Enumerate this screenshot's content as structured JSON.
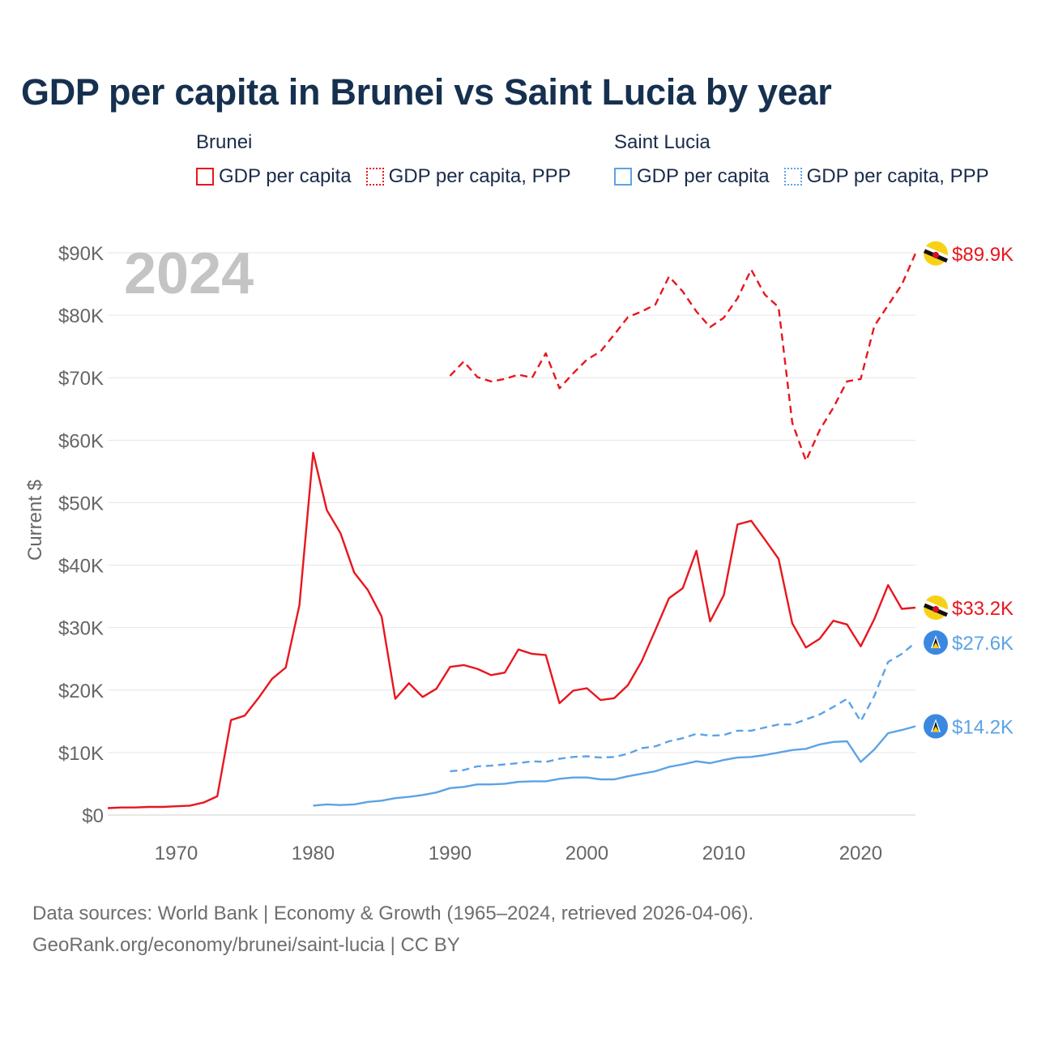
{
  "title": "GDP per capita in Brunei vs Saint Lucia by year",
  "year_watermark": "2024",
  "footer": {
    "line1": "Data sources: World Bank | Economy & Growth (1965–2024, retrieved 2026-04-06).",
    "line2": "GeoRank.org/economy/brunei/saint-lucia | CC BY"
  },
  "legend": {
    "groups": [
      {
        "name": "Brunei",
        "items": [
          "GDP per capita",
          "GDP per capita, PPP"
        ]
      },
      {
        "name": "Saint Lucia",
        "items": [
          "GDP per capita",
          "GDP per capita, PPP"
        ]
      }
    ]
  },
  "colors": {
    "brunei": "#e8161e",
    "saint_lucia": "#5ba3e6",
    "grid": "#e6e6e6",
    "watermark": "#c4c4c4"
  },
  "chart_data": {
    "type": "line",
    "title": "GDP per capita in Brunei vs Saint Lucia by year",
    "xlabel": "",
    "ylabel": "Current $",
    "xlim": [
      1965,
      2024
    ],
    "ylim": [
      0,
      90000
    ],
    "x_ticks": [
      1970,
      1980,
      1990,
      2000,
      2010,
      2020
    ],
    "y_ticks": [
      0,
      10000,
      20000,
      30000,
      40000,
      50000,
      60000,
      70000,
      80000,
      90000
    ],
    "y_tick_labels": [
      "$0",
      "$10K",
      "$20K",
      "$30K",
      "$40K",
      "$50K",
      "$60K",
      "$70K",
      "$80K",
      "$90K"
    ],
    "grid": true,
    "series": [
      {
        "name": "Brunei GDP per capita",
        "country": "Brunei",
        "style": "solid",
        "color": "#e8161e",
        "end_label": "$33.2K",
        "icon": "brunei-flag-icon",
        "x": [
          1965,
          1966,
          1967,
          1968,
          1969,
          1970,
          1971,
          1972,
          1973,
          1974,
          1975,
          1976,
          1977,
          1978,
          1979,
          1980,
          1981,
          1982,
          1983,
          1984,
          1985,
          1986,
          1987,
          1988,
          1989,
          1990,
          1991,
          1992,
          1993,
          1994,
          1995,
          1996,
          1997,
          1998,
          1999,
          2000,
          2001,
          2002,
          2003,
          2004,
          2005,
          2006,
          2007,
          2008,
          2009,
          2010,
          2011,
          2012,
          2013,
          2014,
          2015,
          2016,
          2017,
          2018,
          2019,
          2020,
          2021,
          2022,
          2023,
          2024
        ],
        "y": [
          1100,
          1200,
          1200,
          1300,
          1300,
          1400,
          1500,
          2000,
          3000,
          15200,
          15900,
          18700,
          21800,
          23600,
          33600,
          58000,
          48800,
          45100,
          38800,
          36000,
          31800,
          18600,
          21100,
          18900,
          20200,
          23700,
          24000,
          23400,
          22400,
          22800,
          26500,
          25800,
          25600,
          17900,
          19900,
          20300,
          18400,
          18700,
          20800,
          24600,
          29600,
          34700,
          36300,
          42300,
          31000,
          35200,
          46500,
          47100,
          44100,
          41000,
          30700,
          26800,
          28200,
          31100,
          30500,
          27000,
          31400,
          36800,
          33000,
          33200
        ]
      },
      {
        "name": "Brunei GDP per capita, PPP",
        "country": "Brunei",
        "style": "dashed",
        "color": "#e8161e",
        "end_label": "$89.9K",
        "icon": "brunei-flag-icon",
        "x": [
          1990,
          1991,
          1992,
          1993,
          1994,
          1995,
          1996,
          1997,
          1998,
          1999,
          2000,
          2001,
          2002,
          2003,
          2004,
          2005,
          2006,
          2007,
          2008,
          2009,
          2010,
          2011,
          2012,
          2013,
          2014,
          2015,
          2016,
          2017,
          2018,
          2019,
          2020,
          2021,
          2022,
          2023,
          2024
        ],
        "y": [
          70300,
          72600,
          70100,
          69400,
          69800,
          70500,
          70000,
          73900,
          68300,
          70700,
          72900,
          74200,
          76900,
          79700,
          80600,
          81700,
          86200,
          83800,
          80600,
          78100,
          79600,
          82700,
          87300,
          83300,
          81300,
          62800,
          56700,
          61600,
          65200,
          69400,
          69800,
          78300,
          81600,
          84900,
          89900
        ]
      },
      {
        "name": "Saint Lucia GDP per capita",
        "country": "Saint Lucia",
        "style": "solid",
        "color": "#5ba3e6",
        "end_label": "$14.2K",
        "icon": "saint-lucia-flag-icon",
        "x": [
          1980,
          1981,
          1982,
          1983,
          1984,
          1985,
          1986,
          1987,
          1988,
          1989,
          1990,
          1991,
          1992,
          1993,
          1994,
          1995,
          1996,
          1997,
          1998,
          1999,
          2000,
          2001,
          2002,
          2003,
          2004,
          2005,
          2006,
          2007,
          2008,
          2009,
          2010,
          2011,
          2012,
          2013,
          2014,
          2015,
          2016,
          2017,
          2018,
          2019,
          2020,
          2021,
          2022,
          2023,
          2024
        ],
        "y": [
          1500,
          1700,
          1600,
          1700,
          2100,
          2300,
          2700,
          2900,
          3200,
          3600,
          4300,
          4500,
          4900,
          4900,
          5000,
          5300,
          5400,
          5400,
          5800,
          6000,
          6000,
          5700,
          5700,
          6200,
          6600,
          7000,
          7700,
          8100,
          8600,
          8300,
          8800,
          9200,
          9300,
          9600,
          10000,
          10400,
          10600,
          11300,
          11700,
          11800,
          8500,
          10500,
          13100,
          13600,
          14200
        ]
      },
      {
        "name": "Saint Lucia GDP per capita, PPP",
        "country": "Saint Lucia",
        "style": "dashed",
        "color": "#5ba3e6",
        "end_label": "$27.6K",
        "icon": "saint-lucia-flag-icon",
        "x": [
          1990,
          1991,
          1992,
          1993,
          1994,
          1995,
          1996,
          1997,
          1998,
          1999,
          2000,
          2001,
          2002,
          2003,
          2004,
          2005,
          2006,
          2007,
          2008,
          2009,
          2010,
          2011,
          2012,
          2013,
          2014,
          2015,
          2016,
          2017,
          2018,
          2019,
          2020,
          2021,
          2022,
          2023,
          2024
        ],
        "y": [
          7000,
          7200,
          7800,
          7900,
          8100,
          8300,
          8600,
          8500,
          9000,
          9300,
          9400,
          9200,
          9300,
          9800,
          10700,
          11000,
          11800,
          12300,
          13000,
          12700,
          12800,
          13500,
          13500,
          14000,
          14500,
          14500,
          15300,
          16100,
          17300,
          18600,
          15000,
          19100,
          24500,
          25800,
          27600
        ]
      }
    ]
  }
}
